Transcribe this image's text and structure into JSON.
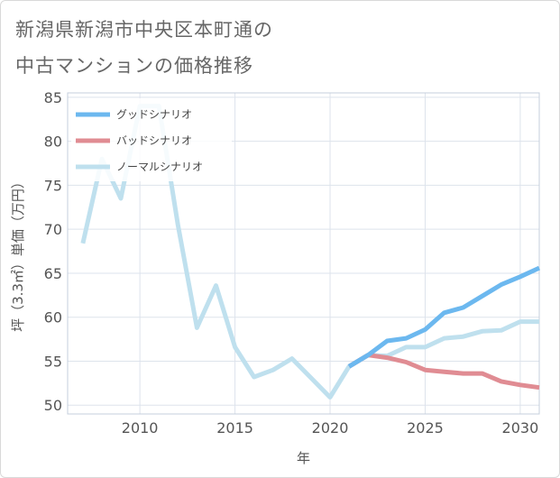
{
  "title_lines": [
    "新潟県新潟市中央区本町通の",
    "中古マンションの価格推移"
  ],
  "chart_data": {
    "type": "line",
    "title": "新潟県新潟市中央区本町通の中古マンションの価格推移",
    "xlabel": "年",
    "ylabel": "坪（3.3㎡）単価（万円）",
    "xlim": [
      2006.2,
      2031
    ],
    "ylim": [
      49,
      85.5
    ],
    "x_ticks": [
      2010,
      2015,
      2020,
      2025,
      2030
    ],
    "y_ticks": [
      50,
      55,
      60,
      65,
      70,
      75,
      80,
      85
    ],
    "grid": true,
    "legend_position": "top-left",
    "series": [
      {
        "name": "グッドシナリオ",
        "color": "#6cb8ef",
        "x": [
          2021,
          2022,
          2023,
          2024,
          2025,
          2026,
          2027,
          2028,
          2029,
          2030,
          2031
        ],
        "values": [
          54.4,
          55.7,
          57.3,
          57.6,
          58.6,
          60.5,
          61.1,
          62.4,
          63.7,
          64.6,
          65.6
        ]
      },
      {
        "name": "バッドシナリオ",
        "color": "#e08c93",
        "x": [
          2021,
          2022,
          2023,
          2024,
          2025,
          2026,
          2027,
          2028,
          2029,
          2030,
          2031
        ],
        "values": [
          54.4,
          55.7,
          55.4,
          54.9,
          54.0,
          53.8,
          53.6,
          53.6,
          52.7,
          52.3,
          52.0
        ]
      },
      {
        "name": "ノーマルシナリオ",
        "color": "#bfe0ee",
        "x": [
          2007,
          2008,
          2009,
          2010,
          2011,
          2012,
          2013,
          2014,
          2015,
          2016,
          2017,
          2018,
          2019,
          2020,
          2021,
          2022,
          2023,
          2024,
          2025,
          2026,
          2027,
          2028,
          2029,
          2030,
          2031
        ],
        "values": [
          68.4,
          78.0,
          73.5,
          84.0,
          84.0,
          70.5,
          58.8,
          63.6,
          56.6,
          53.2,
          54.0,
          55.3,
          53.1,
          50.9,
          54.4,
          55.7,
          55.6,
          56.6,
          56.6,
          57.6,
          57.8,
          58.4,
          58.5,
          59.5,
          59.5
        ]
      }
    ]
  }
}
